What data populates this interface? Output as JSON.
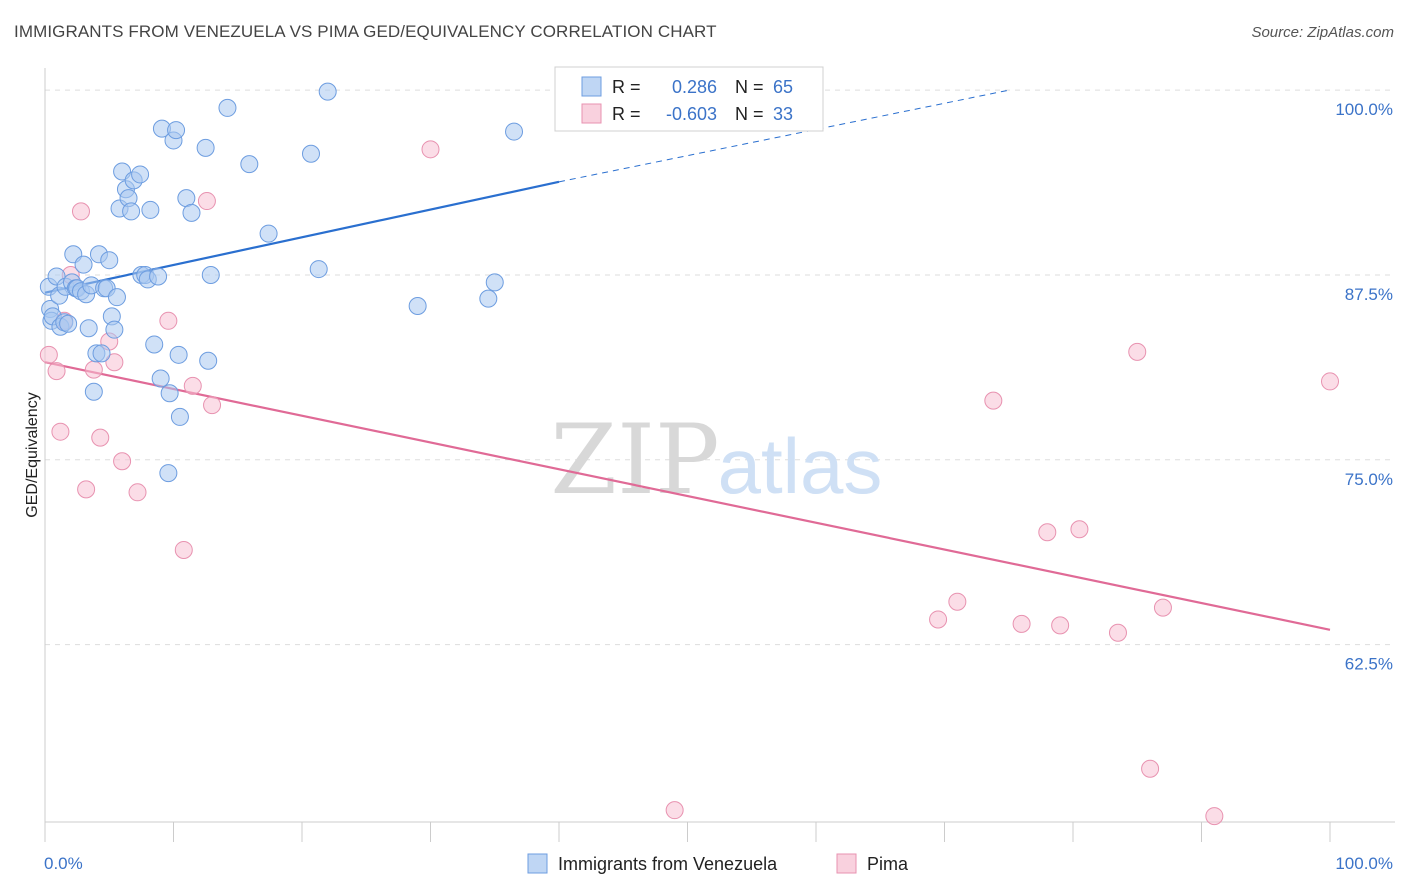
{
  "header": {
    "title": "IMMIGRANTS FROM VENEZUELA VS PIMA GED/EQUIVALENCY CORRELATION CHART",
    "source": "Source: ZipAtlas.com"
  },
  "watermark": {
    "zip": "ZIP",
    "atlas": "atlas"
  },
  "legend": {
    "rows": [
      {
        "r_label": "R =",
        "r_value": "0.286",
        "n_label": "N =",
        "n_value": "65"
      },
      {
        "r_label": "R =",
        "r_value": "-0.603",
        "n_label": "N =",
        "n_value": "33"
      }
    ]
  },
  "colors": {
    "blue_fill": "#a9c8f0",
    "blue_stroke": "#6d9de0",
    "blue_line": "#2a6fcf",
    "pink_fill": "#f7c1d3",
    "pink_stroke": "#e892b0",
    "pink_line": "#e06a96",
    "tick_text": "#3b73c8",
    "grid": "#dddddd"
  },
  "chart_data": {
    "type": "scatter",
    "title": "IMMIGRANTS FROM VENEZUELA VS PIMA GED/EQUIVALENCY CORRELATION CHART",
    "xlabel": "",
    "ylabel": "GED/Equivalency",
    "xlim": [
      0,
      100
    ],
    "ylim": [
      50.5,
      101.5
    ],
    "x_tick_labels": [
      "0.0%",
      "100.0%"
    ],
    "y_ticks": [
      100.0,
      87.5,
      75.0,
      62.5
    ],
    "y_tick_labels": [
      "100.0%",
      "87.5%",
      "75.0%",
      "62.5%"
    ],
    "grid": true,
    "legend_position": "top-center",
    "series": [
      {
        "name": "Immigrants from Venezuela",
        "color": "#a9c8f0",
        "trend": {
          "x": [
            0,
            40
          ],
          "y": [
            86.3,
            93.8
          ],
          "dashed_to": {
            "x": 75,
            "y": 100.0
          }
        },
        "points": [
          [
            0.3,
            86.7
          ],
          [
            0.4,
            85.2
          ],
          [
            0.5,
            84.4
          ],
          [
            0.6,
            84.7
          ],
          [
            0.9,
            87.4
          ],
          [
            1.1,
            86.1
          ],
          [
            1.2,
            84.0
          ],
          [
            1.5,
            84.3
          ],
          [
            1.6,
            86.7
          ],
          [
            2.1,
            87.0
          ],
          [
            2.2,
            88.9
          ],
          [
            2.4,
            86.6
          ],
          [
            2.5,
            86.6
          ],
          [
            2.8,
            86.4
          ],
          [
            3.0,
            88.2
          ],
          [
            3.2,
            86.2
          ],
          [
            3.4,
            83.9
          ],
          [
            3.6,
            86.8
          ],
          [
            3.8,
            79.6
          ],
          [
            4.0,
            82.2
          ],
          [
            4.2,
            88.9
          ],
          [
            4.4,
            82.2
          ],
          [
            4.6,
            86.6
          ],
          [
            4.8,
            86.6
          ],
          [
            5.0,
            88.5
          ],
          [
            5.2,
            84.7
          ],
          [
            5.4,
            83.8
          ],
          [
            5.6,
            86.0
          ],
          [
            5.8,
            92.0
          ],
          [
            6.0,
            94.5
          ],
          [
            6.3,
            93.3
          ],
          [
            6.5,
            92.7
          ],
          [
            6.7,
            91.8
          ],
          [
            6.9,
            93.9
          ],
          [
            7.4,
            94.3
          ],
          [
            7.5,
            87.5
          ],
          [
            7.8,
            87.5
          ],
          [
            8.0,
            87.2
          ],
          [
            8.2,
            91.9
          ],
          [
            8.5,
            82.8
          ],
          [
            8.8,
            87.4
          ],
          [
            9.0,
            80.5
          ],
          [
            9.1,
            97.4
          ],
          [
            9.7,
            79.5
          ],
          [
            10.0,
            96.6
          ],
          [
            10.2,
            97.3
          ],
          [
            10.4,
            82.1
          ],
          [
            10.5,
            77.9
          ],
          [
            11.0,
            92.7
          ],
          [
            11.4,
            91.7
          ],
          [
            12.5,
            96.1
          ],
          [
            12.7,
            81.7
          ],
          [
            12.9,
            87.5
          ],
          [
            14.2,
            98.8
          ],
          [
            15.9,
            95.0
          ],
          [
            17.4,
            90.3
          ],
          [
            20.7,
            95.7
          ],
          [
            21.3,
            87.9
          ],
          [
            22.0,
            99.9
          ],
          [
            29.0,
            85.4
          ],
          [
            34.5,
            85.9
          ],
          [
            35.0,
            87.0
          ],
          [
            36.5,
            97.2
          ],
          [
            9.6,
            74.1
          ],
          [
            1.8,
            84.2
          ]
        ]
      },
      {
        "name": "Pima",
        "color": "#f7c1d3",
        "trend": {
          "x": [
            0,
            100
          ],
          "y": [
            81.6,
            63.5
          ]
        },
        "points": [
          [
            0.3,
            82.1
          ],
          [
            0.9,
            81.0
          ],
          [
            1.2,
            76.9
          ],
          [
            1.5,
            84.4
          ],
          [
            2.0,
            87.5
          ],
          [
            2.8,
            91.8
          ],
          [
            3.2,
            73.0
          ],
          [
            3.8,
            81.1
          ],
          [
            4.3,
            76.5
          ],
          [
            5.0,
            83.0
          ],
          [
            5.4,
            81.6
          ],
          [
            6.0,
            74.9
          ],
          [
            7.2,
            72.8
          ],
          [
            9.6,
            84.4
          ],
          [
            10.8,
            68.9
          ],
          [
            11.5,
            80.0
          ],
          [
            12.6,
            92.5
          ],
          [
            13.0,
            78.7
          ],
          [
            30.0,
            96.0
          ],
          [
            49.0,
            51.3
          ],
          [
            69.5,
            64.2
          ],
          [
            71.0,
            65.4
          ],
          [
            73.8,
            79.0
          ],
          [
            76.0,
            63.9
          ],
          [
            78.0,
            70.1
          ],
          [
            79.0,
            63.8
          ],
          [
            80.5,
            70.3
          ],
          [
            83.5,
            63.3
          ],
          [
            85.0,
            82.3
          ],
          [
            86.0,
            54.1
          ],
          [
            87.0,
            65.0
          ],
          [
            91.0,
            50.9
          ],
          [
            100.0,
            80.3
          ]
        ]
      }
    ]
  },
  "bottom_legend": {
    "items": [
      "Immigrants from Venezuela",
      "Pima"
    ]
  }
}
